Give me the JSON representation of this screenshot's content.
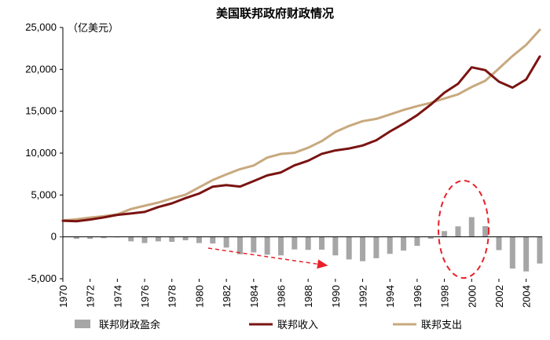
{
  "chart_data": {
    "type": "bar+line",
    "title": "美国联邦政府财政情况",
    "unit_label": "（亿美元）",
    "ylim": [
      -5000,
      25000
    ],
    "y_ticks": [
      -5000,
      0,
      5000,
      10000,
      15000,
      20000,
      25000
    ],
    "y_tick_labels": [
      "-5,000",
      "0",
      "5,000",
      "10,000",
      "15,000",
      "20,000",
      "25,000"
    ],
    "x_tick_labels": [
      "1970",
      "1972",
      "1974",
      "1976",
      "1978",
      "1980",
      "1982",
      "1984",
      "1986",
      "1988",
      "1990",
      "1992",
      "1994",
      "1996",
      "1998",
      "2000",
      "2002",
      "2004"
    ],
    "years": [
      1970,
      1971,
      1972,
      1973,
      1974,
      1975,
      1976,
      1977,
      1978,
      1979,
      1980,
      1981,
      1982,
      1983,
      1984,
      1985,
      1986,
      1987,
      1988,
      1989,
      1990,
      1991,
      1992,
      1993,
      1994,
      1995,
      1996,
      1997,
      1998,
      1999,
      2000,
      2001,
      2002,
      2003,
      2004,
      2005
    ],
    "series": [
      {
        "name": "联邦财政盈余",
        "kind": "bar",
        "color": "#a6a6a6",
        "values": [
          -28,
          -230,
          -234,
          -149,
          -61,
          -532,
          -737,
          -537,
          -591,
          -407,
          -738,
          -790,
          -1280,
          -2078,
          -1854,
          -2123,
          -2212,
          -1498,
          -1552,
          -1525,
          -2212,
          -2694,
          -2903,
          -2550,
          -2031,
          -1640,
          -1072,
          -219,
          691,
          1256,
          2362,
          1282,
          -1578,
          -3776,
          -4127,
          -3183
        ]
      },
      {
        "name": "联邦收入",
        "kind": "line",
        "color": "#7a1412",
        "values": [
          1926,
          1870,
          2072,
          2320,
          2630,
          2791,
          2981,
          3556,
          3999,
          4630,
          5172,
          5993,
          6176,
          6006,
          6665,
          7341,
          7692,
          8542,
          9093,
          9911,
          10320,
          10550,
          10910,
          11540,
          12580,
          13510,
          14530,
          15790,
          17220,
          18270,
          20250,
          19910,
          18530,
          17820,
          18800,
          21540
        ]
      },
      {
        "name": "联邦支出",
        "kind": "line",
        "color": "#c8a97e",
        "values": [
          1956,
          2102,
          2306,
          2458,
          2692,
          3323,
          3718,
          4093,
          4590,
          5037,
          5910,
          6783,
          7456,
          8084,
          8519,
          9464,
          9904,
          10040,
          10645,
          11436,
          12532,
          13245,
          13815,
          14090,
          14615,
          15155,
          15602,
          16010,
          16525,
          17016,
          17890,
          18630,
          20110,
          21600,
          22930,
          24720
        ]
      }
    ]
  }
}
